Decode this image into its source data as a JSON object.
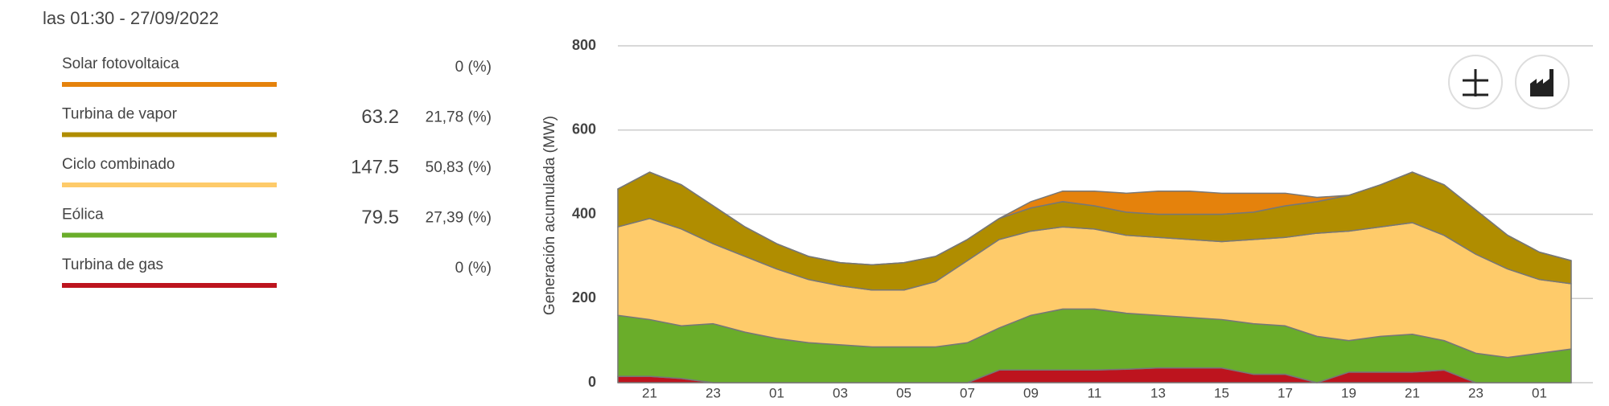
{
  "header": {
    "time": "las 01:30 - 27/09/2022"
  },
  "panel": {
    "rows": [
      {
        "share": "0 (%)"
      },
      {
        "value": 63.2,
        "share": "21,78 (%)"
      },
      {
        "value": 147.5,
        "share": "50,83 (%)"
      },
      {
        "value": 79.5,
        "share": "27,39 (%)"
      },
      {
        "share": "0 (%)"
      }
    ]
  },
  "chart_data": {
    "type": "stacked_area",
    "y_label": "Generación acumulada (MW)",
    "categories": [
      null,
      "21",
      null,
      "23",
      null,
      "01",
      null,
      "03",
      null,
      "05",
      null,
      "07",
      null,
      "09",
      null,
      "11",
      null,
      "13",
      null,
      "15",
      null,
      "17",
      null,
      "19",
      null,
      "21",
      null,
      "23",
      null,
      "01",
      null
    ],
    "ylim": [
      0,
      800
    ],
    "yticks": [
      0,
      200,
      400,
      600,
      800
    ],
    "grid": true,
    "series": [
      {
        "name": "Solar fotovoltaica",
        "color": "#e5820c",
        "values": [
          0,
          0,
          0,
          0,
          0,
          0,
          0,
          0,
          0,
          0,
          0,
          0,
          0,
          15,
          25,
          35,
          45,
          55,
          55,
          50,
          45,
          30,
          10,
          0,
          0,
          0,
          0,
          0,
          0,
          0,
          0
        ]
      },
      {
        "name": "Turbina de vapor",
        "color": "#b08d00",
        "values": [
          90,
          110,
          105,
          90,
          70,
          60,
          55,
          55,
          60,
          65,
          60,
          50,
          50,
          55,
          60,
          55,
          55,
          55,
          60,
          65,
          65,
          75,
          75,
          85,
          100,
          120,
          120,
          105,
          80,
          65,
          55
        ]
      },
      {
        "name": "Ciclo combinado",
        "color": "#fecb6a",
        "values": [
          210,
          240,
          230,
          190,
          180,
          165,
          150,
          140,
          135,
          135,
          155,
          195,
          210,
          200,
          195,
          190,
          185,
          185,
          185,
          185,
          200,
          210,
          245,
          260,
          260,
          265,
          250,
          235,
          210,
          175,
          155
        ]
      },
      {
        "name": "Eólica",
        "color": "#6aad2a",
        "values": [
          145,
          135,
          125,
          140,
          120,
          105,
          95,
          90,
          85,
          85,
          85,
          95,
          100,
          130,
          145,
          145,
          133,
          125,
          120,
          115,
          120,
          115,
          110,
          75,
          85,
          90,
          70,
          70,
          60,
          70,
          80
        ]
      },
      {
        "name": "Turbina de gas",
        "color": "#bd141e",
        "values": [
          15,
          15,
          10,
          0,
          0,
          0,
          0,
          0,
          0,
          0,
          0,
          0,
          30,
          30,
          30,
          30,
          32,
          35,
          35,
          35,
          20,
          20,
          0,
          25,
          25,
          25,
          30,
          0,
          0,
          0,
          0
        ]
      }
    ]
  }
}
